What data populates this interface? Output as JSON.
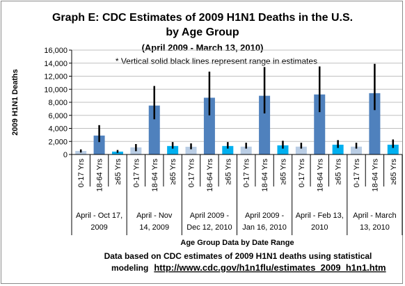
{
  "chart_data": {
    "type": "bar",
    "title_line1": "Graph E: CDC Estimates of 2009 H1N1 Deaths in the U.S.",
    "title_line2": "by Age Group",
    "subtitle": "(April 2009 - March 13, 2010)",
    "note": "* Vertical solid black lines represent range in estimates",
    "ylabel": "2009 H1N1 Deaths",
    "xlabel": "Age Group Data by Date Range",
    "ylim": [
      0,
      16000
    ],
    "yticks": [
      0,
      2000,
      4000,
      6000,
      8000,
      10000,
      12000,
      14000,
      16000
    ],
    "ytick_labels": [
      "0",
      "2,000",
      "4,000",
      "6,000",
      "8,000",
      "10,000",
      "12,000",
      "14,000",
      "16,000"
    ],
    "grid": true,
    "age_groups": [
      "0-17 Yrs",
      "18-64 Yrs",
      "≥65 Yrs"
    ],
    "date_ranges": [
      {
        "label_line1": "April - Oct 17,",
        "label_line2": "2009"
      },
      {
        "label_line1": "April - Nov",
        "label_line2": "14, 2009"
      },
      {
        "label_line1": "April 2009 -",
        "label_line2": "Dec 12, 2010"
      },
      {
        "label_line1": "April 2009 -",
        "label_line2": "Jan 16, 2010"
      },
      {
        "label_line1": "April - Feb 13,",
        "label_line2": "2010"
      },
      {
        "label_line1": "April - March",
        "label_line2": "13, 2010"
      }
    ],
    "series": [
      {
        "values": [
          540,
          2900,
          440
        ],
        "low": [
          300,
          1900,
          250
        ],
        "high": [
          780,
          4500,
          690
        ],
        "colors": [
          "#b9cde5",
          "#4f81bd",
          "#00b0f0"
        ]
      },
      {
        "values": [
          1090,
          7500,
          1300
        ],
        "low": [
          500,
          5400,
          900
        ],
        "high": [
          1600,
          10500,
          1900
        ]
      },
      {
        "values": [
          1180,
          8700,
          1300
        ],
        "low": [
          800,
          6000,
          900
        ],
        "high": [
          1700,
          12700,
          1900
        ]
      },
      {
        "values": [
          1200,
          9000,
          1400
        ],
        "low": [
          900,
          6300,
          900
        ],
        "high": [
          1800,
          13400,
          2100
        ]
      },
      {
        "values": [
          1200,
          9200,
          1500
        ],
        "low": [
          900,
          6500,
          1000
        ],
        "high": [
          1800,
          13500,
          2200
        ]
      },
      {
        "values": [
          1200,
          9400,
          1500
        ],
        "low": [
          900,
          6800,
          1000
        ],
        "high": [
          1800,
          13900,
          2300
        ]
      }
    ],
    "colors": {
      "age_0_17": "#b9cde5",
      "age_18_64": "#4f81bd",
      "age_65_plus": "#00b0f0",
      "range_line": "#000000",
      "grid": "#bfbfbf"
    }
  },
  "footer": {
    "line1": "Data based on CDC estimates of 2009 H1N1 deaths using statistical",
    "line2_prefix": "modeling",
    "link": "http://www.cdc.gov/h1n1flu/estimates_2009_h1n1.htm"
  }
}
